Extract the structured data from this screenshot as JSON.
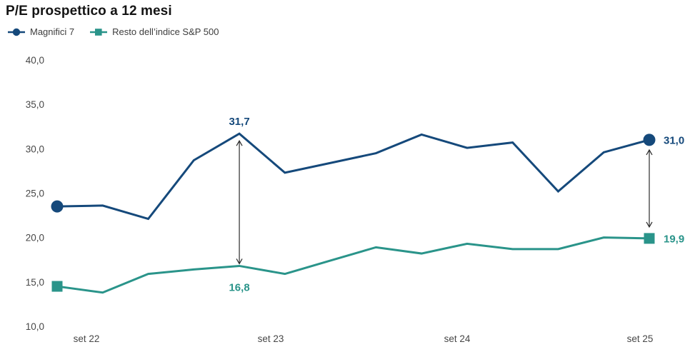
{
  "title": "P/E prospettico a 12 mesi",
  "colors": {
    "series1": "#15497b",
    "series2": "#2a948a",
    "arrow": "#2b2b2b",
    "tick_text": "#474747",
    "title_text": "#141414"
  },
  "chart_data": {
    "type": "line",
    "title": "P/E prospettico a 12 mesi",
    "xlabel": "",
    "ylabel": "",
    "grid": false,
    "legend_position": "top-left",
    "ylim": [
      10,
      40
    ],
    "y_tick_labels": [
      "40,0",
      "35,0",
      "30,0",
      "25,0",
      "20,0",
      "15,0",
      "10,0"
    ],
    "y_tick_values": [
      40,
      35,
      30,
      25,
      20,
      15,
      10
    ],
    "x_tick_labels": [
      "set 22",
      "set 23",
      "set 24",
      "set 25"
    ],
    "series": [
      {
        "name": "Magnifici 7",
        "color": "#15497b",
        "marker": "circle",
        "values": [
          23.5,
          23.6,
          22.1,
          28.7,
          31.7,
          27.3,
          28.4,
          29.5,
          31.6,
          30.1,
          30.7,
          25.2,
          29.6,
          31.0
        ]
      },
      {
        "name": "Resto dell’indice S&P 500",
        "color": "#2a948a",
        "marker": "square",
        "values": [
          14.5,
          13.8,
          15.9,
          16.4,
          16.8,
          15.9,
          17.4,
          18.9,
          18.2,
          19.3,
          18.7,
          18.7,
          20.0,
          19.9
        ]
      }
    ],
    "annotations": [
      {
        "series": 0,
        "index": 4,
        "text": "31,7",
        "position": "above"
      },
      {
        "series": 0,
        "index": 13,
        "text": "31,0",
        "position": "right"
      },
      {
        "series": 1,
        "index": 4,
        "text": "16,8",
        "position": "below"
      },
      {
        "series": 1,
        "index": 13,
        "text": "19,9",
        "position": "right"
      }
    ],
    "gap_arrows": [
      {
        "index": 4
      },
      {
        "index": 13
      }
    ]
  }
}
